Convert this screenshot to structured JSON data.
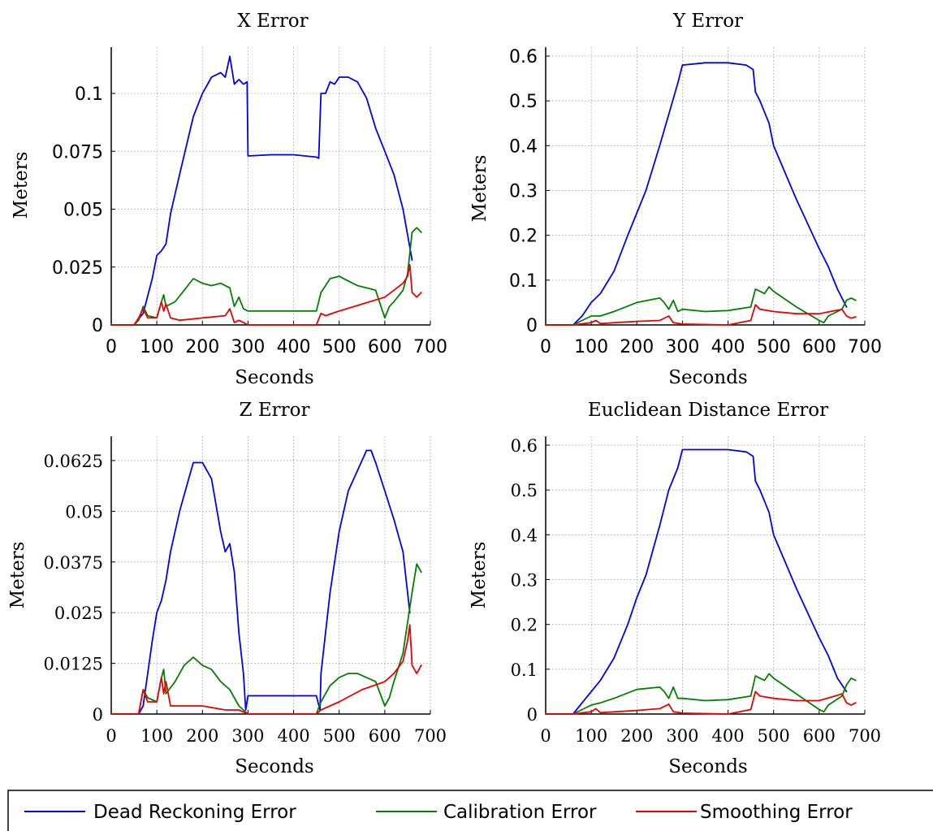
{
  "legend": {
    "items": [
      {
        "name": "Dead Reckoning Error",
        "color": "#0000ee"
      },
      {
        "name": "Calibration Error",
        "color": "#008000"
      },
      {
        "name": "Smoothing Error",
        "color": "#ee0000"
      }
    ]
  },
  "chart_data": [
    {
      "type": "line",
      "title": "X Error",
      "xlabel": "Seconds",
      "ylabel": "Meters",
      "xlim": [
        0,
        700
      ],
      "ylim": [
        0,
        0.12
      ],
      "xticks": [
        0,
        100,
        200,
        300,
        400,
        500,
        600,
        700
      ],
      "yticks": [
        0,
        0.025,
        0.05,
        0.075,
        0.1
      ],
      "ytick_labels": [
        "0",
        "0.025",
        "0.05",
        "0.075",
        "0.1"
      ],
      "grid": true,
      "series": [
        {
          "name": "Dead Reckoning Error",
          "color": "#0000ee",
          "x": [
            0,
            50,
            70,
            90,
            100,
            110,
            120,
            130,
            150,
            180,
            200,
            220,
            240,
            250,
            260,
            270,
            280,
            290,
            298,
            300,
            350,
            400,
            450,
            455,
            460,
            470,
            480,
            490,
            500,
            520,
            540,
            560,
            580,
            600,
            620,
            640,
            660
          ],
          "y": [
            0,
            0,
            0.005,
            0.02,
            0.03,
            0.032,
            0.035,
            0.048,
            0.065,
            0.09,
            0.1,
            0.107,
            0.109,
            0.107,
            0.116,
            0.104,
            0.106,
            0.104,
            0.105,
            0.073,
            0.0735,
            0.0735,
            0.0725,
            0.072,
            0.1,
            0.1,
            0.105,
            0.104,
            0.107,
            0.107,
            0.105,
            0.098,
            0.085,
            0.075,
            0.065,
            0.05,
            0.028
          ]
        },
        {
          "name": "Calibration Error",
          "color": "#008000",
          "x": [
            0,
            50,
            60,
            70,
            80,
            100,
            110,
            115,
            120,
            140,
            160,
            180,
            200,
            220,
            240,
            260,
            270,
            280,
            290,
            300,
            350,
            400,
            450,
            460,
            470,
            480,
            500,
            520,
            540,
            560,
            580,
            600,
            610,
            620,
            640,
            650,
            660,
            670,
            680
          ],
          "y": [
            0,
            0,
            0.002,
            0.008,
            0.004,
            0.003,
            0.01,
            0.013,
            0.008,
            0.01,
            0.015,
            0.02,
            0.018,
            0.017,
            0.018,
            0.016,
            0.008,
            0.012,
            0.007,
            0.006,
            0.006,
            0.006,
            0.006,
            0.014,
            0.017,
            0.02,
            0.021,
            0.019,
            0.017,
            0.016,
            0.015,
            0.003,
            0.008,
            0.01,
            0.015,
            0.022,
            0.04,
            0.042,
            0.04
          ]
        },
        {
          "name": "Smoothing Error",
          "color": "#ee0000",
          "x": [
            0,
            50,
            60,
            70,
            80,
            100,
            110,
            115,
            120,
            130,
            150,
            200,
            250,
            260,
            270,
            280,
            290,
            300,
            350,
            400,
            450,
            460,
            470,
            500,
            550,
            600,
            620,
            640,
            650,
            655,
            660,
            670,
            680
          ],
          "y": [
            0,
            0,
            0.003,
            0.007,
            0.003,
            0.003,
            0.01,
            0.006,
            0.009,
            0.003,
            0.002,
            0.003,
            0.004,
            0.007,
            0.001,
            0.002,
            0.001,
            0,
            0,
            0,
            0,
            0.005,
            0.004,
            0.006,
            0.009,
            0.012,
            0.015,
            0.018,
            0.021,
            0.026,
            0.014,
            0.012,
            0.014
          ]
        }
      ]
    },
    {
      "type": "line",
      "title": "Y Error",
      "xlabel": "Seconds",
      "ylabel": "Meters",
      "xlim": [
        0,
        700
      ],
      "ylim": [
        0,
        0.62
      ],
      "xticks": [
        0,
        100,
        200,
        300,
        400,
        500,
        600,
        700
      ],
      "yticks": [
        0,
        0.1,
        0.2,
        0.3,
        0.4,
        0.5,
        0.6
      ],
      "ytick_labels": [
        "0",
        "0.1",
        "0.2",
        "0.3",
        "0.4",
        "0.5",
        "0.6"
      ],
      "grid": true,
      "series": [
        {
          "name": "Dead Reckoning Error",
          "color": "#0000ee",
          "x": [
            0,
            60,
            80,
            100,
            120,
            150,
            180,
            200,
            220,
            250,
            270,
            290,
            300,
            350,
            400,
            440,
            455,
            460,
            470,
            490,
            500,
            550,
            600,
            620,
            640,
            660
          ],
          "y": [
            0,
            0,
            0.02,
            0.05,
            0.07,
            0.12,
            0.2,
            0.25,
            0.3,
            0.4,
            0.47,
            0.54,
            0.58,
            0.585,
            0.585,
            0.58,
            0.57,
            0.52,
            0.5,
            0.45,
            0.4,
            0.28,
            0.17,
            0.13,
            0.08,
            0.04
          ]
        },
        {
          "name": "Calibration Error",
          "color": "#008000",
          "x": [
            0,
            60,
            80,
            100,
            120,
            150,
            200,
            250,
            260,
            270,
            280,
            290,
            300,
            350,
            400,
            450,
            460,
            470,
            480,
            490,
            500,
            550,
            600,
            610,
            620,
            650,
            660,
            670,
            680
          ],
          "y": [
            0,
            0,
            0.01,
            0.02,
            0.02,
            0.03,
            0.05,
            0.06,
            0.05,
            0.035,
            0.055,
            0.03,
            0.035,
            0.03,
            0.032,
            0.04,
            0.08,
            0.075,
            0.07,
            0.085,
            0.075,
            0.04,
            0.01,
            0.005,
            0.02,
            0.035,
            0.055,
            0.06,
            0.055
          ]
        },
        {
          "name": "Smoothing Error",
          "color": "#ee0000",
          "x": [
            0,
            60,
            100,
            110,
            120,
            200,
            250,
            270,
            280,
            300,
            400,
            450,
            460,
            470,
            500,
            550,
            600,
            650,
            660,
            670,
            680
          ],
          "y": [
            0,
            0,
            0.005,
            0.01,
            0.003,
            0.008,
            0.01,
            0.02,
            0.005,
            0.002,
            0,
            0.01,
            0.045,
            0.035,
            0.03,
            0.025,
            0.025,
            0.035,
            0.02,
            0.015,
            0.018
          ]
        }
      ]
    },
    {
      "type": "line",
      "title": "Z Error",
      "xlabel": "Seconds",
      "ylabel": "Meters",
      "xlim": [
        0,
        700
      ],
      "ylim": [
        0,
        0.0685
      ],
      "xticks": [
        0,
        100,
        200,
        300,
        400,
        500,
        600,
        700
      ],
      "yticks": [
        0,
        0.0125,
        0.025,
        0.0375,
        0.05,
        0.0625
      ],
      "ytick_labels": [
        "0",
        "0.0125",
        "0.025",
        "0.0375",
        "0.05",
        "0.0625"
      ],
      "grid": true,
      "series": [
        {
          "name": "Dead Reckoning Error",
          "color": "#0000ee",
          "x": [
            0,
            60,
            70,
            80,
            90,
            100,
            110,
            120,
            130,
            140,
            150,
            170,
            180,
            190,
            200,
            220,
            240,
            250,
            260,
            270,
            280,
            290,
            295,
            300,
            450,
            458,
            460,
            470,
            480,
            500,
            520,
            540,
            560,
            570,
            580,
            600,
            620,
            640,
            655
          ],
          "y": [
            0,
            0,
            0.002,
            0.01,
            0.018,
            0.025,
            0.028,
            0.033,
            0.04,
            0.045,
            0.05,
            0.058,
            0.062,
            0.062,
            0.062,
            0.058,
            0.045,
            0.04,
            0.042,
            0.035,
            0.02,
            0.01,
            0.001,
            0.0045,
            0.0045,
            0.001,
            0.01,
            0.02,
            0.03,
            0.045,
            0.055,
            0.06,
            0.065,
            0.065,
            0.062,
            0.055,
            0.048,
            0.04,
            0.025
          ]
        },
        {
          "name": "Calibration Error",
          "color": "#008000",
          "x": [
            0,
            60,
            70,
            80,
            100,
            110,
            115,
            120,
            140,
            160,
            180,
            200,
            220,
            240,
            260,
            280,
            290,
            300,
            400,
            450,
            460,
            480,
            500,
            520,
            540,
            560,
            580,
            600,
            610,
            620,
            640,
            660,
            670,
            680
          ],
          "y": [
            0,
            0,
            0.006,
            0.004,
            0.003,
            0.009,
            0.011,
            0.005,
            0.008,
            0.012,
            0.014,
            0.012,
            0.011,
            0.008,
            0.006,
            0.002,
            0.001,
            0,
            0,
            0,
            0.003,
            0.007,
            0.009,
            0.01,
            0.01,
            0.009,
            0.008,
            0.002,
            0.004,
            0.008,
            0.015,
            0.03,
            0.037,
            0.035
          ]
        },
        {
          "name": "Smoothing Error",
          "color": "#ee0000",
          "x": [
            0,
            60,
            70,
            80,
            100,
            110,
            115,
            120,
            130,
            150,
            200,
            250,
            280,
            300,
            450,
            460,
            500,
            550,
            600,
            620,
            640,
            650,
            655,
            660,
            670,
            680
          ],
          "y": [
            0,
            0,
            0.006,
            0.003,
            0.003,
            0.009,
            0.005,
            0.008,
            0.002,
            0.002,
            0.002,
            0.001,
            0.001,
            0,
            0,
            0.001,
            0.003,
            0.006,
            0.008,
            0.01,
            0.013,
            0.018,
            0.022,
            0.012,
            0.01,
            0.012
          ]
        }
      ]
    },
    {
      "type": "line",
      "title": "Euclidean Distance Error",
      "xlabel": "Seconds",
      "ylabel": "Meters",
      "xlim": [
        0,
        700
      ],
      "ylim": [
        0,
        0.62
      ],
      "xticks": [
        0,
        100,
        200,
        300,
        400,
        500,
        600,
        700
      ],
      "yticks": [
        0,
        0.1,
        0.2,
        0.3,
        0.4,
        0.5,
        0.6
      ],
      "ytick_labels": [
        "0",
        "0.1",
        "0.2",
        "0.3",
        "0.4",
        "0.5",
        "0.6"
      ],
      "grid": true,
      "series": [
        {
          "name": "Dead Reckoning Error",
          "color": "#0000ee",
          "x": [
            0,
            60,
            80,
            100,
            120,
            150,
            180,
            200,
            220,
            250,
            270,
            290,
            300,
            350,
            400,
            440,
            455,
            460,
            470,
            490,
            500,
            550,
            600,
            620,
            640,
            660
          ],
          "y": [
            0,
            0,
            0.025,
            0.05,
            0.075,
            0.125,
            0.2,
            0.26,
            0.31,
            0.42,
            0.5,
            0.55,
            0.59,
            0.59,
            0.59,
            0.585,
            0.575,
            0.52,
            0.5,
            0.45,
            0.4,
            0.28,
            0.17,
            0.13,
            0.08,
            0.05
          ]
        },
        {
          "name": "Calibration Error",
          "color": "#008000",
          "x": [
            0,
            60,
            80,
            100,
            120,
            150,
            200,
            250,
            260,
            270,
            280,
            290,
            300,
            350,
            400,
            450,
            460,
            470,
            480,
            490,
            500,
            550,
            600,
            610,
            620,
            650,
            660,
            670,
            680
          ],
          "y": [
            0,
            0,
            0.01,
            0.02,
            0.025,
            0.035,
            0.055,
            0.06,
            0.05,
            0.035,
            0.06,
            0.035,
            0.035,
            0.03,
            0.032,
            0.04,
            0.085,
            0.08,
            0.075,
            0.09,
            0.08,
            0.045,
            0.01,
            0.005,
            0.02,
            0.04,
            0.065,
            0.08,
            0.075
          ]
        },
        {
          "name": "Smoothing Error",
          "color": "#ee0000",
          "x": [
            0,
            60,
            100,
            110,
            120,
            200,
            250,
            270,
            280,
            300,
            400,
            450,
            460,
            470,
            500,
            550,
            600,
            650,
            660,
            670,
            680
          ],
          "y": [
            0,
            0,
            0.005,
            0.012,
            0.003,
            0.008,
            0.012,
            0.022,
            0.005,
            0.002,
            0,
            0.01,
            0.05,
            0.04,
            0.035,
            0.03,
            0.03,
            0.045,
            0.025,
            0.02,
            0.025
          ]
        }
      ]
    }
  ]
}
